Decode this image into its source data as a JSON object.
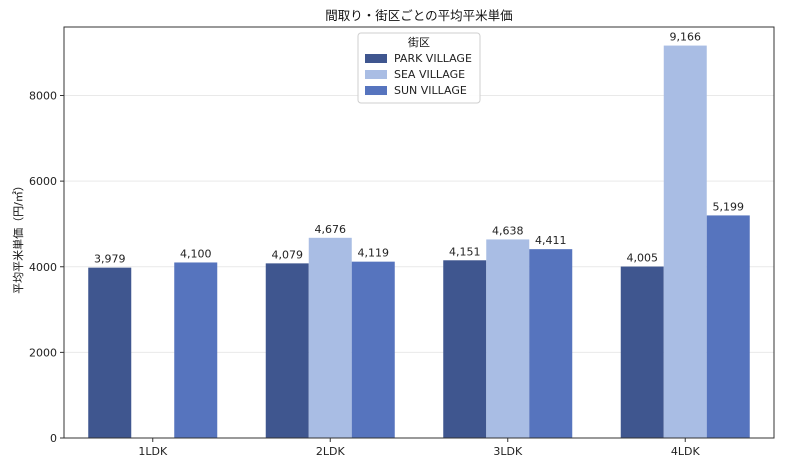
{
  "chart_data": {
    "type": "bar",
    "title": "間取り・街区ごとの平均平米単価",
    "ylabel": "平均平米単価（円/㎡）",
    "xlabel": "",
    "categories": [
      "1LDK",
      "2LDK",
      "3LDK",
      "4LDK"
    ],
    "ylim": [
      0,
      9600
    ],
    "yticks": [
      0,
      2000,
      4000,
      6000,
      8000
    ],
    "ytick_labels": [
      "0",
      "2000",
      "4000",
      "6000",
      "8000"
    ],
    "grid": "horizontal, faint",
    "legend": {
      "title": "街区",
      "placement": "top-center"
    },
    "series": [
      {
        "name": "PARK VILLAGE",
        "color": "#3f568f",
        "values": [
          3979,
          4079,
          4151,
          4005
        ],
        "labels": [
          "3,979",
          "4,079",
          "4,151",
          "4,005"
        ]
      },
      {
        "name": "SEA VILLAGE",
        "color": "#a9bde4",
        "values": [
          null,
          4676,
          4638,
          9166
        ],
        "labels": [
          "",
          "4,676",
          "4,638",
          "9,166"
        ]
      },
      {
        "name": "SUN VILLAGE",
        "color": "#5674be",
        "values": [
          4100,
          4119,
          4411,
          5199
        ],
        "labels": [
          "4,100",
          "4,119",
          "4,411",
          "5,199"
        ]
      }
    ]
  }
}
